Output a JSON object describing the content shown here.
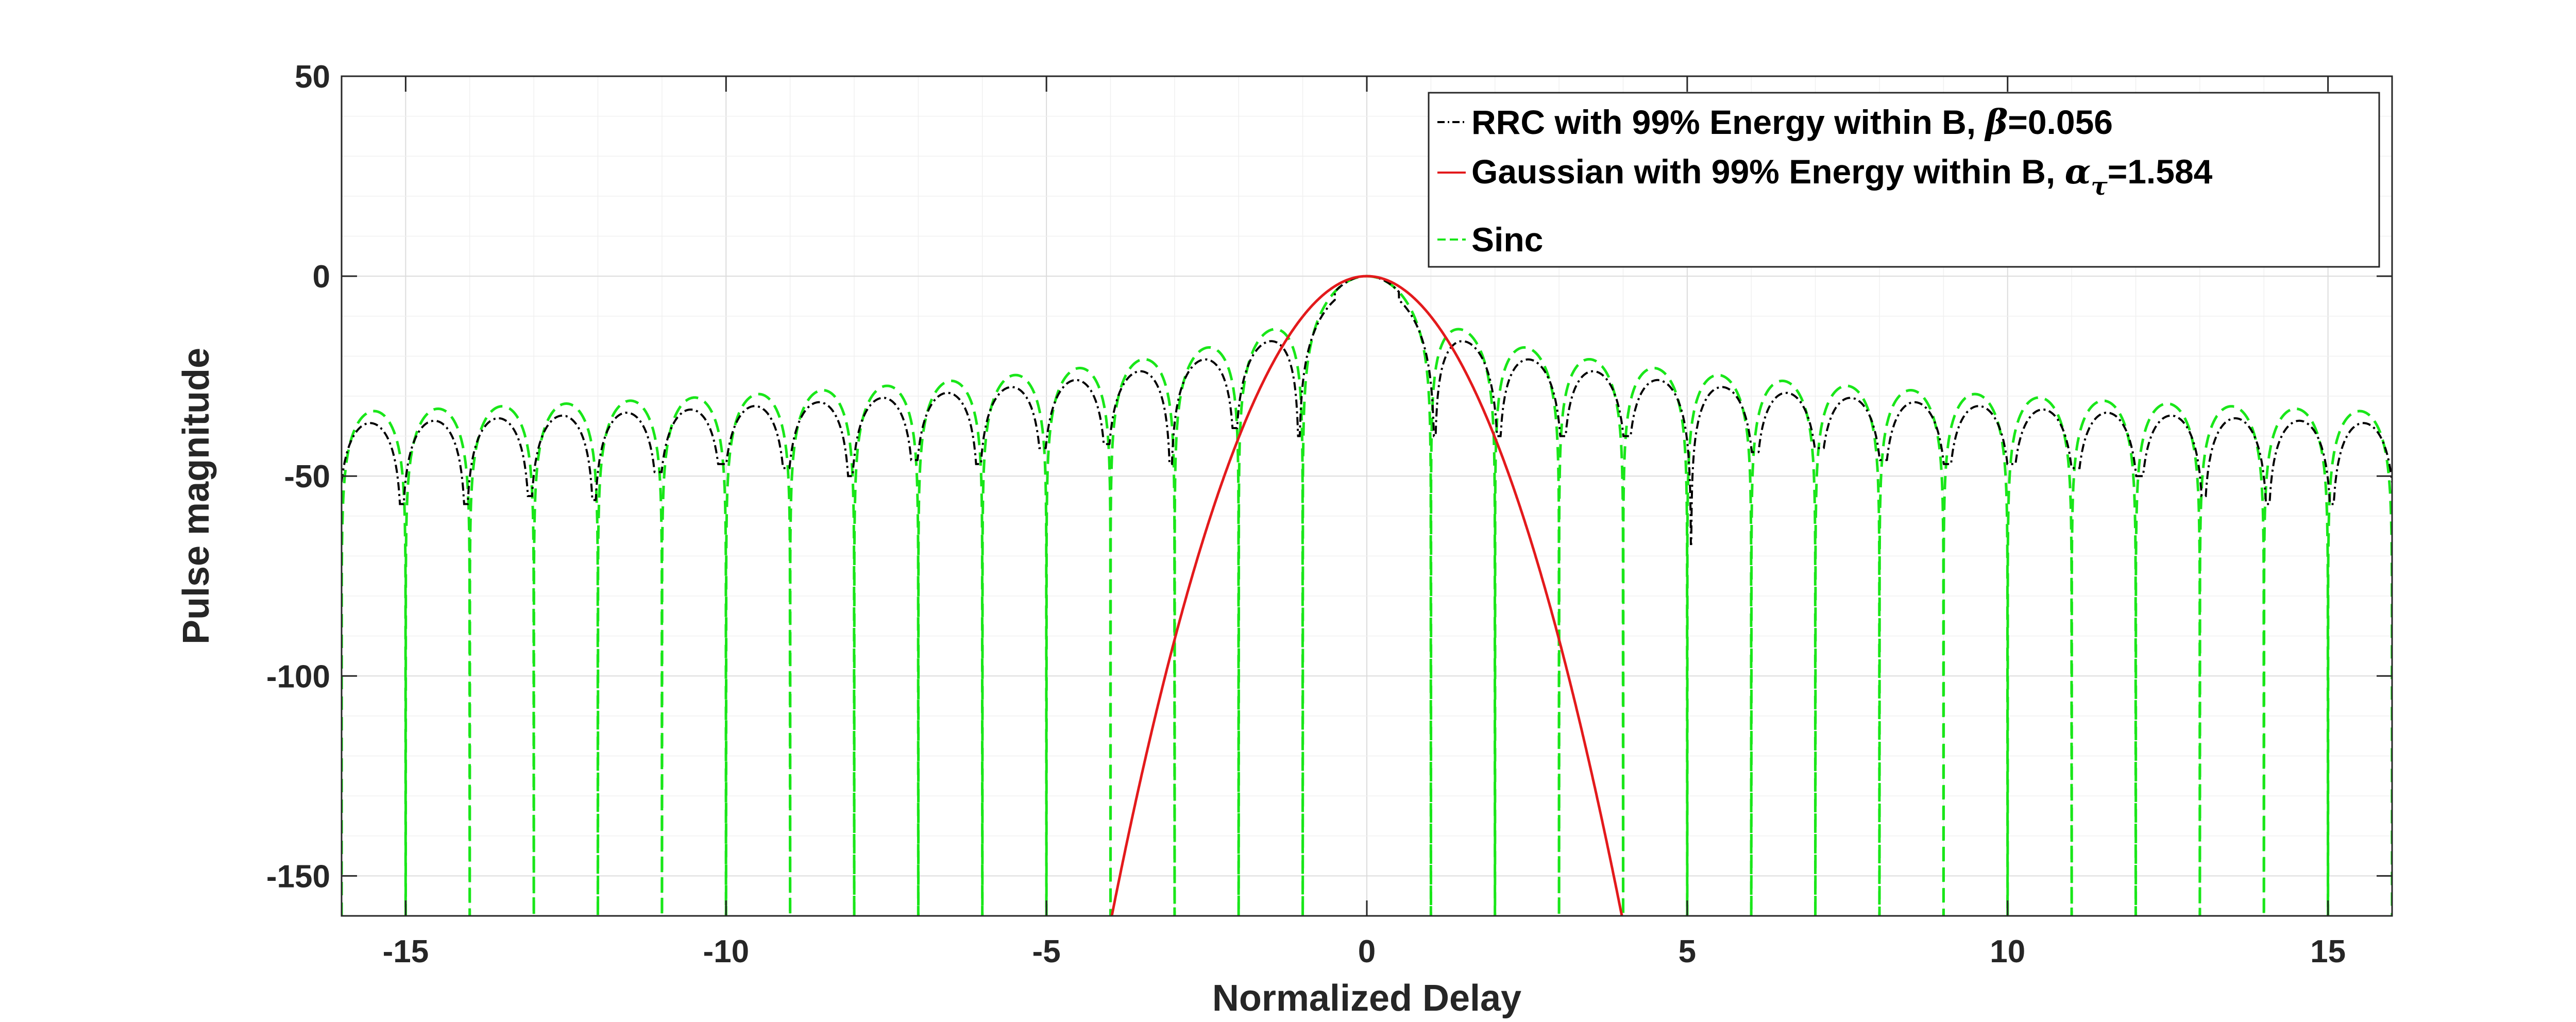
{
  "chart_data": {
    "type": "line",
    "title": "",
    "xlabel": "Normalized Delay",
    "ylabel": "Pulse magnitude",
    "xlim": [
      -16,
      16
    ],
    "ylim": [
      -160,
      50
    ],
    "x_ticks": [
      "-15",
      "-10",
      "-5",
      "0",
      "5",
      "10",
      "15"
    ],
    "y_ticks": [
      "50",
      "0",
      "-50",
      "-100",
      "-150"
    ],
    "grid": true,
    "minor_grid": true,
    "legend_position": "top-right",
    "series": [
      {
        "name": "RRC with 99% Energy within B, β=0.056",
        "legend_prefix": "RRC with 99% Energy within B, ",
        "legend_symbol": "β",
        "legend_suffix": "=0.056",
        "color": "#000000",
        "style": "dash-dot",
        "beta": 0.056,
        "null_depths": [
          -57,
          -57,
          -55,
          -56,
          -49,
          -47,
          -48,
          -50,
          -46,
          -47,
          -43,
          -42,
          -47,
          -38,
          -40,
          -67,
          -40,
          -40,
          -40,
          -40,
          -67,
          -44,
          -43,
          -46,
          -47,
          -47,
          -48,
          -50,
          -55,
          -57,
          -57
        ]
      },
      {
        "name": "Gaussian with 99% Energy within B, ατ=1.584",
        "legend_prefix": "Gaussian with 99% Energy within B, ",
        "legend_symbol": "α",
        "legend_subscript": "τ",
        "legend_suffix": "=1.584",
        "color": "#e31a1c",
        "style": "solid",
        "alpha_tau": 1.584
      },
      {
        "name": "Sinc",
        "legend_prefix": "Sinc",
        "color": "#19e619",
        "style": "dashed"
      }
    ]
  }
}
